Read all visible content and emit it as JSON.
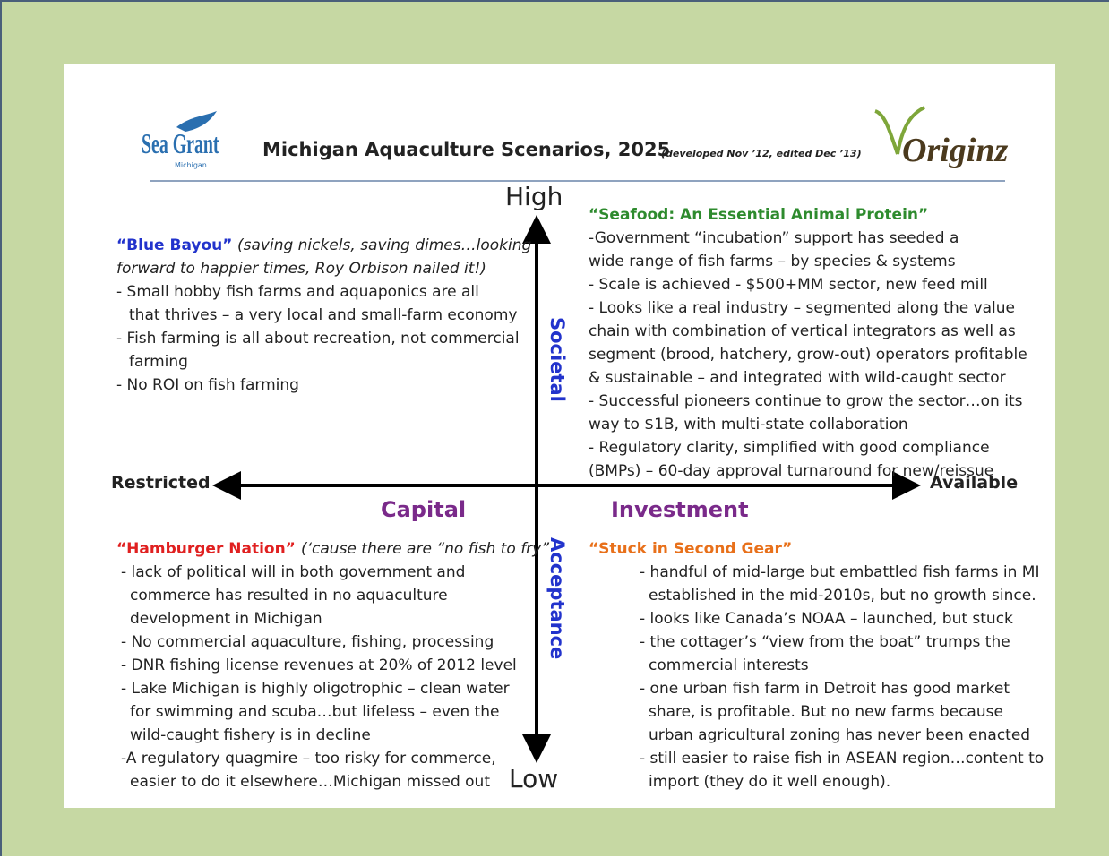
{
  "header": {
    "logo_left": "Sea Grant",
    "logo_left_sub": "Michigan",
    "title": "Michigan Aquaculture Scenarios, 2025",
    "subtitle": "(developed Nov ’12, edited Dec ’13)",
    "logo_right": "Originz"
  },
  "axes": {
    "high": "High",
    "low": "Low",
    "left": "Restricted",
    "right": "Available",
    "upper_label": "Societal",
    "lower_label": "Acceptance",
    "left_label": "Capital",
    "right_label": "Investment"
  },
  "quadrants": [
    {
      "title": "“Blue Bayou”",
      "note": [
        "(saving nickels, saving dimes…looking",
        "forward to happier times, Roy Orbison nailed it!)"
      ],
      "items": [
        [
          "- Small hobby fish farms and aquaponics are all",
          "that thrives – a very local and small-farm economy"
        ],
        [
          "- Fish farming is all about recreation, not commercial",
          "farming"
        ],
        [
          "- No ROI on fish farming"
        ]
      ]
    },
    {
      "title": "“Seafood: An Essential Animal Protein”",
      "note": [],
      "items": [
        [
          "-Government “incubation” support has seeded a",
          "wide range of fish farms – by species & systems"
        ],
        [
          "- Scale is achieved - $500+MM sector, new feed mill"
        ],
        [
          "- Looks like a real industry – segmented along the value",
          "chain with combination of vertical integrators as well as",
          "segment (brood, hatchery, grow-out)  operators profitable",
          "& sustainable – and integrated with wild-caught sector"
        ],
        [
          " - Successful pioneers continue to grow the sector…on its",
          "way to $1B, with multi-state collaboration"
        ],
        [
          "- Regulatory clarity, simplified with good compliance",
          "(BMPs) – 60-day approval turnaround for new/reissue"
        ]
      ]
    },
    {
      "title": "“Hamburger Nation”",
      "note": [
        "(‘cause there are “no fish to fry”"
      ],
      "items": [
        [
          "- lack of political will in both government and",
          "commerce has resulted in no aquaculture",
          "development in Michigan"
        ],
        [
          "- No commercial aquaculture, fishing, processing"
        ],
        [
          "- DNR fishing license revenues at 20% of 2012 level"
        ],
        [
          "- Lake Michigan is highly oligotrophic – clean water",
          "for swimming and scuba…but lifeless – even the",
          "wild-caught fishery is in decline"
        ],
        [
          "-A regulatory quagmire – too risky for commerce,",
          "easier to do it elsewhere…Michigan missed out"
        ]
      ]
    },
    {
      "title": "“Stuck in Second Gear”",
      "note": [],
      "items": [
        [
          "- handful of mid-large but embattled fish farms in MI",
          "established in the mid-2010s, but no growth since."
        ],
        [
          "- looks like Canada’s NOAA – launched, but stuck"
        ],
        [
          "- the cottager’s “view from the boat” trumps the",
          "commercial interests"
        ],
        [
          "- one urban fish farm in Detroit has good market",
          "share, is profitable.  But no new farms because",
          "urban agricultural zoning has never been enacted"
        ],
        [
          "- still easier to raise fish in ASEAN region…content to",
          "import (they do it well enough)."
        ]
      ]
    }
  ]
}
